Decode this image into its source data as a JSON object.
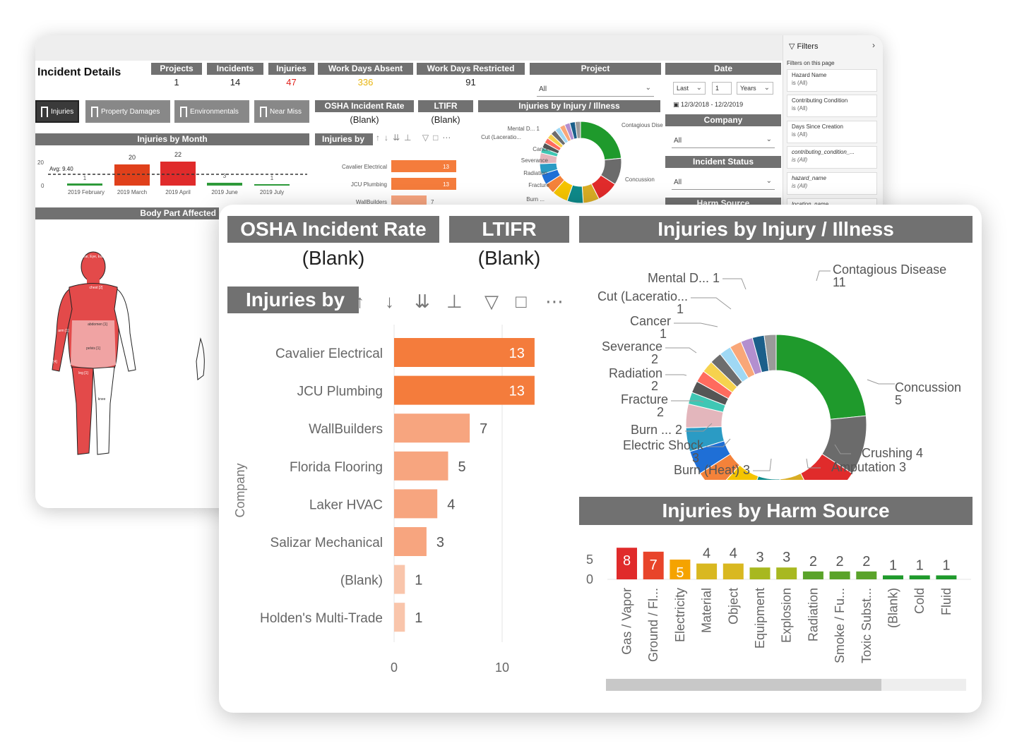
{
  "back": {
    "title": "Incident Details",
    "kpis": [
      {
        "label": "Projects",
        "value": "1"
      },
      {
        "label": "Incidents",
        "value": "14"
      },
      {
        "label": "Injuries",
        "value": "47",
        "color": "#e0211b"
      },
      {
        "label": "Work Days Absent",
        "value": "336",
        "color": "#e8b50f"
      },
      {
        "label": "Work Days Restricted",
        "value": "91"
      }
    ],
    "project": {
      "label": "Project",
      "value": "All"
    },
    "date": {
      "label": "Date",
      "rel": "Last",
      "num": "1",
      "unit": "Years",
      "range": "12/3/2018 - 12/2/2019"
    },
    "company": {
      "label": "Company",
      "value": "All"
    },
    "incident_status": {
      "label": "Incident Status",
      "value": "All"
    },
    "harm_source_label": "Harm Source",
    "buttons": [
      "Injuries",
      "Property Damages",
      "Environmentals",
      "Near Miss"
    ],
    "osha": {
      "label": "OSHA Incident Rate",
      "value": "(Blank)"
    },
    "ltifr": {
      "label": "LTIFR",
      "value": "(Blank)"
    },
    "injuries_by_injury_label": "Injuries by Injury / Illness",
    "injuries_by_month": {
      "label": "Injuries by Month",
      "avg": "Avg: 9.40",
      "y_ticks": [
        "20",
        "0"
      ],
      "months": [
        "2019 February",
        "2019 March",
        "2019 April",
        "2019 June",
        "2019 July"
      ],
      "values": [
        "1",
        "20",
        "22",
        "3",
        "1"
      ]
    },
    "injuries_by_label": "Injuries by",
    "company_bars": [
      {
        "name": "Cavalier Electrical",
        "value": "13"
      },
      {
        "name": "JCU Plumbing",
        "value": "13"
      },
      {
        "name": "WallBuilders",
        "value": "7"
      }
    ],
    "mini_donut_labels": [
      {
        "name": "Mental D...",
        "value": "1"
      },
      {
        "name": "Cut (Laceratio...",
        "value": "1"
      },
      {
        "name": "Cancer",
        "value": "1"
      },
      {
        "name": "Severance",
        "value": "2"
      },
      {
        "name": "Radiation",
        "value": "2"
      },
      {
        "name": "Fracture",
        "value": "2"
      },
      {
        "name": "Burn ...",
        "value": "2"
      },
      {
        "name": "Contagious Disease",
        "value": "11"
      },
      {
        "name": "Concussion",
        "value": "5"
      }
    ],
    "body_part_label": "Body Part Affected",
    "body_labels": [
      "ear, Eye, Ear",
      "chest [2]",
      "abdomen [1]",
      "pelvis [1]",
      "leg [1]",
      "arm [1]",
      "knee",
      "[4]"
    ],
    "filters": {
      "title": "Filters",
      "section": "Filters on this page",
      "cards": [
        {
          "name": "Hazard Name",
          "state": "is (All)"
        },
        {
          "name": "Contributing Condition",
          "state": "is (All)"
        },
        {
          "name": "Days Since Creation",
          "state": "is (All)"
        },
        {
          "name": "contributing_condition_...",
          "state": "is (All)"
        },
        {
          "name": "hazard_name",
          "state": "is (All)"
        },
        {
          "name": "location_name",
          "state": ""
        }
      ]
    }
  },
  "front": {
    "osha": {
      "label": "OSHA Incident Rate",
      "value": "(Blank)"
    },
    "ltifr": {
      "label": "LTIFR",
      "value": "(Blank)"
    },
    "injuries_by_label": "Injuries by",
    "donut_title": "Injuries by Injury / Illness",
    "harm_title": "Injuries by Harm Source"
  },
  "chart_data": [
    {
      "type": "bar",
      "orientation": "horizontal",
      "title": "Injuries by",
      "ylabel": "Company",
      "categories": [
        "Cavalier Electrical",
        "JCU Plumbing",
        "WallBuilders",
        "Florida Flooring",
        "Laker HVAC",
        "Salizar Mechanical",
        "(Blank)",
        "Holden's Multi-Trade"
      ],
      "values": [
        13,
        13,
        7,
        5,
        4,
        3,
        1,
        1
      ],
      "x_ticks": [
        0,
        10
      ],
      "xlim": [
        0,
        13
      ],
      "colors": [
        "#f47c3c",
        "#f47c3c",
        "#f7a57f",
        "#f7a57f",
        "#f7a57f",
        "#f7a57f",
        "#f9c5ab",
        "#f9c5ab"
      ]
    },
    {
      "type": "pie",
      "donut": true,
      "title": "Injuries by Injury / Illness",
      "slices": [
        {
          "label": "Contagious Disease",
          "value": 11,
          "color": "#1f9a2c"
        },
        {
          "label": "Concussion",
          "value": 5,
          "color": "#6b6b6b"
        },
        {
          "label": "Crushing",
          "value": 4,
          "color": "#e02b2b"
        },
        {
          "label": "Amputation",
          "value": 3,
          "color": "#d9ad24"
        },
        {
          "label": "Burn (Heat)",
          "value": 3,
          "color": "#0e8a8a"
        },
        {
          "label": "Electric Shock",
          "value": 3,
          "color": "#f5c400"
        },
        {
          "label": "Burn ...",
          "value": 2,
          "color": "#f4823a"
        },
        {
          "label": "Fracture",
          "value": 2,
          "color": "#1f6fd6"
        },
        {
          "label": "Radiation",
          "value": 2,
          "color": "#2b9bc4"
        },
        {
          "label": "Severance",
          "value": 2,
          "color": "#e3b6bc"
        },
        {
          "label": "",
          "value": 1,
          "color": "#3fc7b4"
        },
        {
          "label": "",
          "value": 1,
          "color": "#555555"
        },
        {
          "label": "",
          "value": 1,
          "color": "#ff6b5e"
        },
        {
          "label": "",
          "value": 1,
          "color": "#f6d24e"
        },
        {
          "label": "Cancer",
          "value": 1,
          "color": "#6d6d6d"
        },
        {
          "label": "",
          "value": 1,
          "color": "#9fd8f4"
        },
        {
          "label": "Cut (Laceratio...",
          "value": 1,
          "color": "#f9a779"
        },
        {
          "label": "",
          "value": 1,
          "color": "#b38fcf"
        },
        {
          "label": "Mental D...",
          "value": 1,
          "color": "#1b5f8a"
        },
        {
          "label": "",
          "value": 1,
          "color": "#9a9a9a"
        }
      ],
      "callouts": [
        {
          "label": "Mental D...",
          "value": "1",
          "inline": true
        },
        {
          "label": "Cut (Laceratio...",
          "value": "1"
        },
        {
          "label": "Cancer",
          "value": "1"
        },
        {
          "label": "Severance",
          "value": "2"
        },
        {
          "label": "Radiation",
          "value": "2"
        },
        {
          "label": "Fracture",
          "value": "2"
        },
        {
          "label": "Burn ...",
          "value": "2",
          "inline": true
        },
        {
          "label": "Electric Shock",
          "value": "3"
        },
        {
          "label": "Burn (Heat)",
          "value": "3",
          "inline": true
        },
        {
          "label": "Amputation",
          "value": "3",
          "inline": true
        },
        {
          "label": "Crushing",
          "value": "4",
          "inline": true
        },
        {
          "label": "Concussion",
          "value": "5"
        },
        {
          "label": "Contagious Disease",
          "value": "11"
        }
      ]
    },
    {
      "type": "bar",
      "title": "Injuries by Harm Source",
      "categories": [
        "Gas / Vapor",
        "Ground / Fl...",
        "Electricity",
        "Material",
        "Object",
        "Equipment",
        "Explosion",
        "Radiation",
        "Smoke / Fu...",
        "Toxic Subst...",
        "(Blank)",
        "Cold",
        "Fluid"
      ],
      "values": [
        8,
        7,
        5,
        4,
        4,
        3,
        3,
        2,
        2,
        2,
        1,
        1,
        1
      ],
      "y_ticks": [
        0,
        5
      ],
      "ylim": [
        0,
        8
      ],
      "colors": [
        "#e02b2b",
        "#e8442a",
        "#f5a300",
        "#d9b820",
        "#d9b820",
        "#a8b820",
        "#a8b820",
        "#5aa32a",
        "#5aa32a",
        "#5aa32a",
        "#1f9a2c",
        "#1f9a2c",
        "#1f9a2c"
      ]
    }
  ]
}
